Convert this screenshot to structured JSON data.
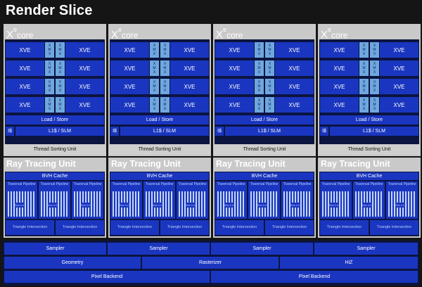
{
  "title": "Render Slice",
  "xe_core": {
    "xe": "X",
    "sup": "e",
    "word": "core"
  },
  "xve_label": "XVE",
  "xmx_letters": [
    "X",
    "M",
    "X"
  ],
  "load_store": "Load / Store",
  "icache": "I$",
  "l1_slm": "L1$ / SLM",
  "thread_sorting_unit": "Thread Sorting Unit",
  "ray_tracing_unit": "Ray Tracing Unit",
  "bvh_cache": "BVH Cache",
  "traversal_pipeline": "Traversal Pipeline",
  "box_intersect": "Box Int",
  "triangle_intersection": "Triangle Intersection",
  "bottom": {
    "samplers": [
      "Sampler",
      "Sampler",
      "Sampler",
      "Sampler"
    ],
    "geometry": "Geometry",
    "rasterizer": "Rasterizer",
    "hiz": "HiZ",
    "pixel_backends": [
      "Pixel Backend",
      "Pixel Backend"
    ]
  },
  "colors": {
    "background": "#151515",
    "panel_gray": "#c9c9c9",
    "panel_dark": "#0c1440",
    "unit_blue": "#1a36c0",
    "xmx_light_blue": "#6fa8de"
  }
}
